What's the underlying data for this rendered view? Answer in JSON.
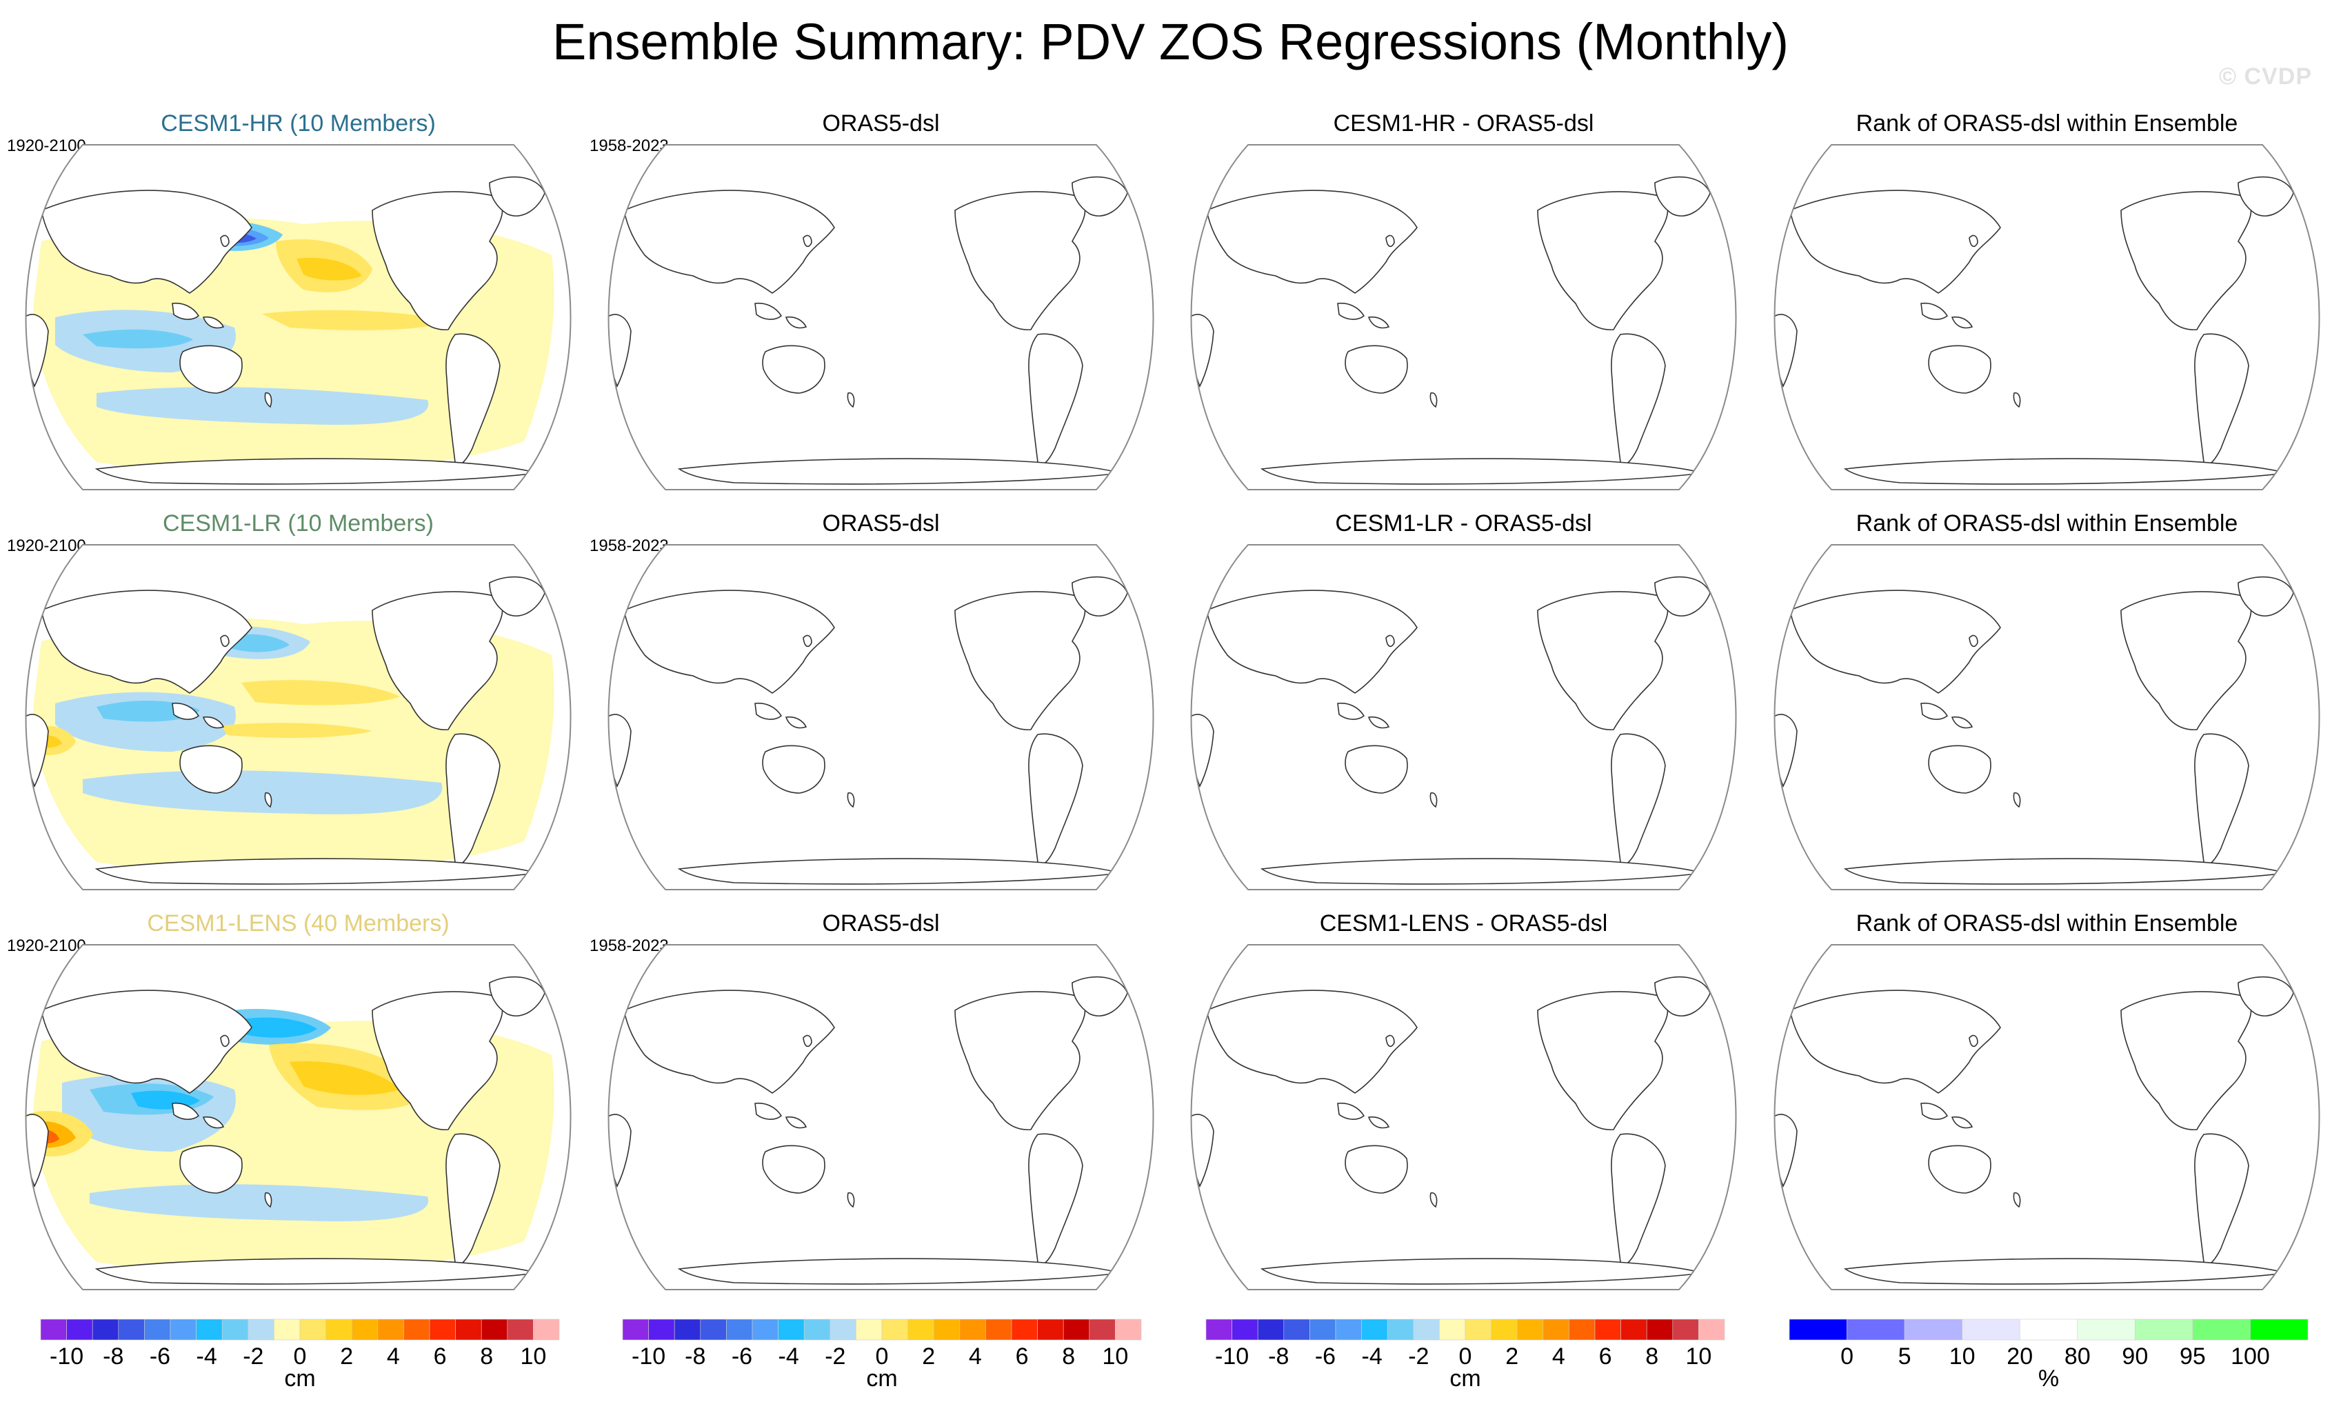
{
  "title": "Ensemble Summary: PDV ZOS Regressions (Monthly)",
  "watermark": "© CVDP",
  "colors": {
    "regression_scale": [
      "#8d28e6",
      "#5a1ef0",
      "#2d2ddc",
      "#3c5ae6",
      "#4682f0",
      "#55a0fa",
      "#1ebeff",
      "#6ecdf5",
      "#b4dcf5",
      "#fffab4",
      "#ffe664",
      "#ffd21e",
      "#ffb400",
      "#ff9600",
      "#ff6400",
      "#ff2d00",
      "#e61400",
      "#c80000",
      "#d23c46",
      "#ffb4b4"
    ],
    "rank_scale": [
      "#0000ff",
      "#6e6eff",
      "#b4b4ff",
      "#e6e6ff",
      "#ffffff",
      "#e6ffe6",
      "#b4ffb4",
      "#78ff78",
      "#00ff00"
    ]
  },
  "rows": [
    {
      "model": "CESM1-HR (10 Members)",
      "model_color": "#2a7090",
      "model_years": "1920-2100",
      "obs_title": "ORAS5-dsl",
      "obs_years": "1958-2023",
      "diff_title": "CESM1-HR - ORAS5-dsl",
      "rank_title": "Rank of ORAS5-dsl within Ensemble"
    },
    {
      "model": "CESM1-LR (10 Members)",
      "model_color": "#5e8c66",
      "model_years": "1920-2100",
      "obs_title": "ORAS5-dsl",
      "obs_years": "1958-2023",
      "diff_title": "CESM1-LR - ORAS5-dsl",
      "rank_title": "Rank of ORAS5-dsl within Ensemble"
    },
    {
      "model": "CESM1-LENS (40 Members)",
      "model_color": "#e3cf7a",
      "model_years": "1920-2100",
      "obs_title": "ORAS5-dsl",
      "obs_years": "1958-2023",
      "diff_title": "CESM1-LENS - ORAS5-dsl",
      "rank_title": "Rank of ORAS5-dsl within Ensemble"
    }
  ],
  "colorbars": [
    {
      "ticks": [
        "-10",
        "-8",
        "-6",
        "-4",
        "-2",
        "0",
        "2",
        "4",
        "6",
        "8",
        "10"
      ],
      "unit": "cm"
    },
    {
      "ticks": [
        "-10",
        "-8",
        "-6",
        "-4",
        "-2",
        "0",
        "2",
        "4",
        "6",
        "8",
        "10"
      ],
      "unit": "cm"
    },
    {
      "ticks": [
        "-10",
        "-8",
        "-6",
        "-4",
        "-2",
        "0",
        "2",
        "4",
        "6",
        "8",
        "10"
      ],
      "unit": "cm"
    },
    {
      "ticks": [
        "0",
        "5",
        "10",
        "20",
        "80",
        "90",
        "95",
        "100"
      ],
      "unit": "%"
    }
  ],
  "chart_data": {
    "type": "heatmap",
    "projection": "Robinson (Pacific-centered)",
    "variable": "PDV ZOS regression",
    "units": "cm",
    "regression_range": [
      -10,
      10
    ],
    "regression_levels": [
      -10,
      -8,
      -6,
      -4,
      -2,
      0,
      2,
      4,
      6,
      8,
      10
    ],
    "rank_levels": [
      0,
      5,
      10,
      20,
      80,
      90,
      95,
      100
    ],
    "filled_panels": [
      "CESM1-HR (10 Members)",
      "CESM1-LR (10 Members)",
      "CESM1-LENS (40 Members)"
    ],
    "empty_panels": [
      "ORAS5-dsl",
      "CESM1-HR - ORAS5-dsl",
      "CESM1-LR - ORAS5-dsl",
      "CESM1-LENS - ORAS5-dsl",
      "Rank of ORAS5-dsl within Ensemble"
    ],
    "patterns": [
      {
        "model": "CESM1-HR (10 Members)",
        "north_pacific_kuroshio": -8,
        "northeast_pacific_coast": 3,
        "tropical_pacific": 2,
        "south_pacific": -2,
        "southern_ocean": -1
      },
      {
        "model": "CESM1-LR (10 Members)",
        "north_pacific_kuroshio": -5,
        "northeast_pacific_coast": 2,
        "tropical_pacific": 2,
        "south_pacific": -3,
        "indian_ocean_west": 5
      },
      {
        "model": "CESM1-LENS (40 Members)",
        "north_pacific_kuroshio": -6,
        "northeast_pacific_coast": 4,
        "tropical_pacific": 4,
        "south_pacific": -3,
        "indian_ocean_west": 7
      }
    ]
  }
}
